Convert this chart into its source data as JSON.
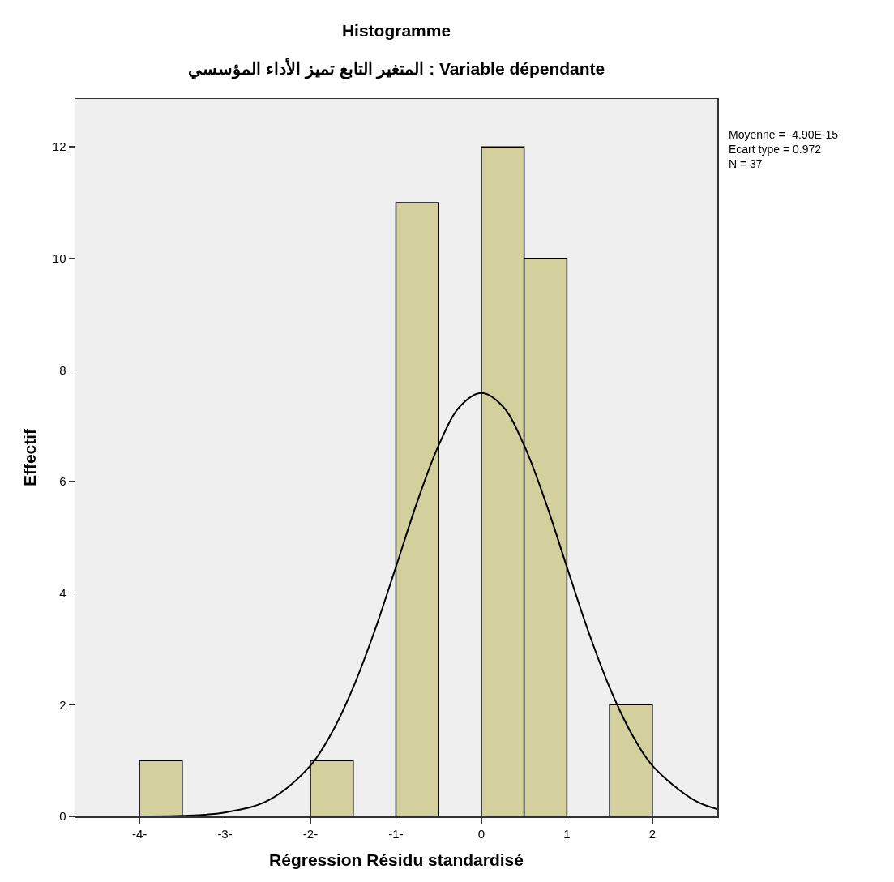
{
  "chart_data": {
    "type": "histogram",
    "title": "Histogramme",
    "subtitle": "المتغير التابع تميز الأداء المؤسسي : Variable dépendante",
    "xlabel": "Régression Résidu standardisé",
    "ylabel": "Effectif",
    "bins": [
      -4,
      -3.5,
      -3,
      -2.5,
      -2,
      -1.5,
      -1,
      -0.5,
      0,
      0.5,
      1,
      1.5,
      2
    ],
    "values": [
      1,
      0,
      0,
      0,
      1,
      0,
      11,
      0,
      12,
      10,
      0,
      2
    ],
    "color": "#d4d09e",
    "series": [
      {
        "type": "line",
        "color": "#000000",
        "x": [
          -4.75,
          -4,
          -3.5,
          -3,
          -2.5,
          -2,
          -1.75,
          -1.5,
          -1.25,
          -1,
          -0.75,
          -0.5,
          -0.25,
          0,
          0.25,
          0.5,
          0.75,
          1,
          1.25,
          1.5,
          1.75,
          2,
          2.5,
          2.76
        ],
        "values": [
          0,
          0,
          0.01,
          0.07,
          0.28,
          0.91,
          1.5,
          2.31,
          3.32,
          4.47,
          5.64,
          6.65,
          7.35,
          7.59,
          7.35,
          6.65,
          5.64,
          4.47,
          3.32,
          2.31,
          1.5,
          0.91,
          0.28,
          0.13
        ]
      }
    ],
    "xlim": [
      -4.75,
      2.76
    ],
    "xticks": [
      {
        "value": -4,
        "label": "-4-"
      },
      {
        "value": -3,
        "label": "-3-"
      },
      {
        "value": -2,
        "label": "-2-"
      },
      {
        "value": -1,
        "label": "-1-"
      },
      0,
      1,
      2
    ],
    "ylim": [
      0,
      12.86
    ],
    "yticks": [
      0,
      2,
      4,
      6,
      8,
      10,
      12
    ],
    "annotations": [
      "Moyenne = -4.90E-15",
      "Ecart type = 0.972",
      "N = 37"
    ],
    "grid": false,
    "marker": "none",
    "line_style": "solid"
  }
}
